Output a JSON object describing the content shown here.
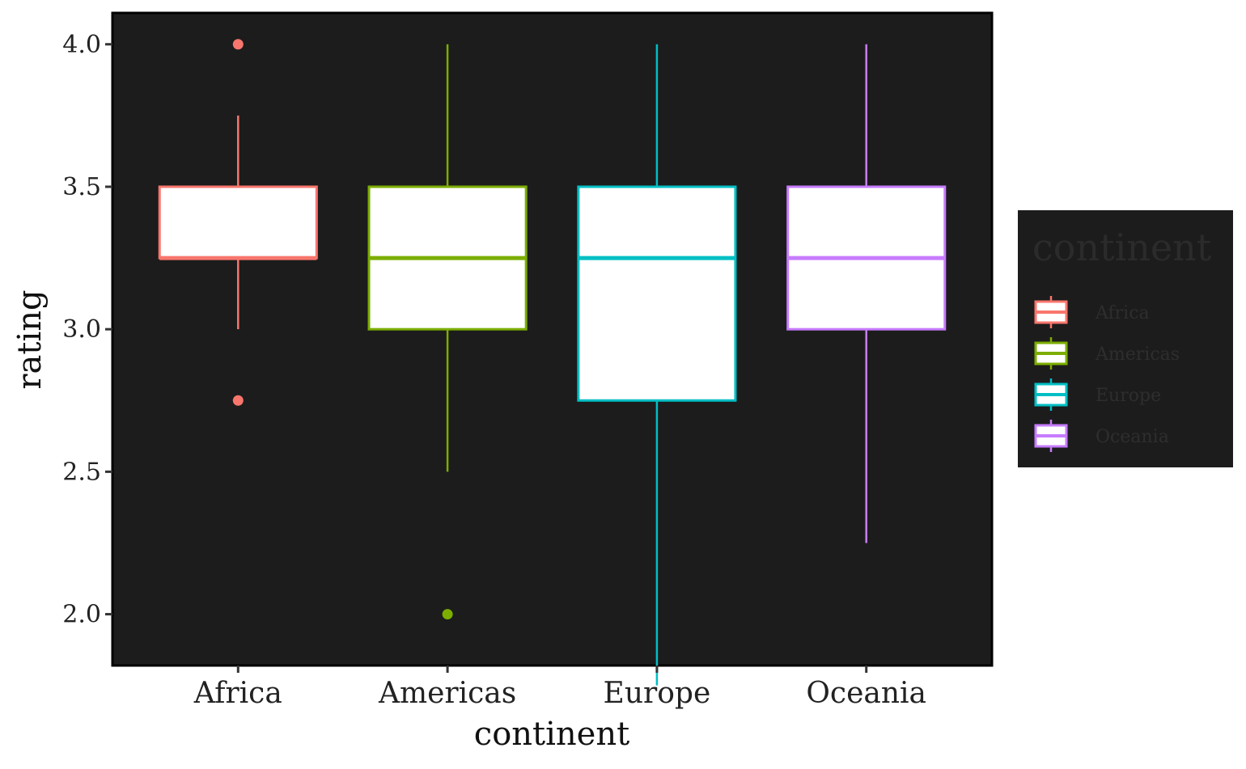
{
  "chart_data": {
    "type": "boxplot",
    "xlabel": "continent",
    "ylabel": "rating",
    "categories": [
      "Africa",
      "Americas",
      "Europe",
      "Oceania"
    ],
    "ylim": [
      1.82,
      4.11
    ],
    "yticks": [
      2.0,
      2.5,
      3.0,
      3.5,
      4.0
    ],
    "ytick_labels": [
      "2.0",
      "2.5",
      "3.0",
      "3.5",
      "4.0"
    ],
    "grid": false,
    "legend": {
      "title": "continent",
      "position": "right",
      "entries": [
        "Africa",
        "Americas",
        "Europe",
        "Oceania"
      ]
    },
    "series": [
      {
        "category": "Africa",
        "color": "#F8766D",
        "whisker_low": 3.0,
        "q1": 3.25,
        "median": 3.25,
        "q3": 3.5,
        "whisker_high": 3.75,
        "outliers": [
          4.0,
          2.75
        ]
      },
      {
        "category": "Americas",
        "color": "#7CAE00",
        "whisker_low": 2.5,
        "q1": 3.0,
        "median": 3.25,
        "q3": 3.5,
        "whisker_high": 4.0,
        "outliers": [
          2.0
        ]
      },
      {
        "category": "Europe",
        "color": "#00BFC4",
        "whisker_low": 1.75,
        "q1": 2.75,
        "median": 3.25,
        "q3": 3.5,
        "whisker_high": 4.0,
        "outliers": []
      },
      {
        "category": "Oceania",
        "color": "#C77CFF",
        "whisker_low": 2.25,
        "q1": 3.0,
        "median": 3.25,
        "q3": 3.5,
        "whisker_high": 4.0,
        "outliers": []
      }
    ],
    "colors": {
      "panel_background": "#1c1c1c",
      "panel_border": "#000000",
      "box_fill": "#ffffff",
      "legend_background": "#1c1c1c"
    }
  }
}
